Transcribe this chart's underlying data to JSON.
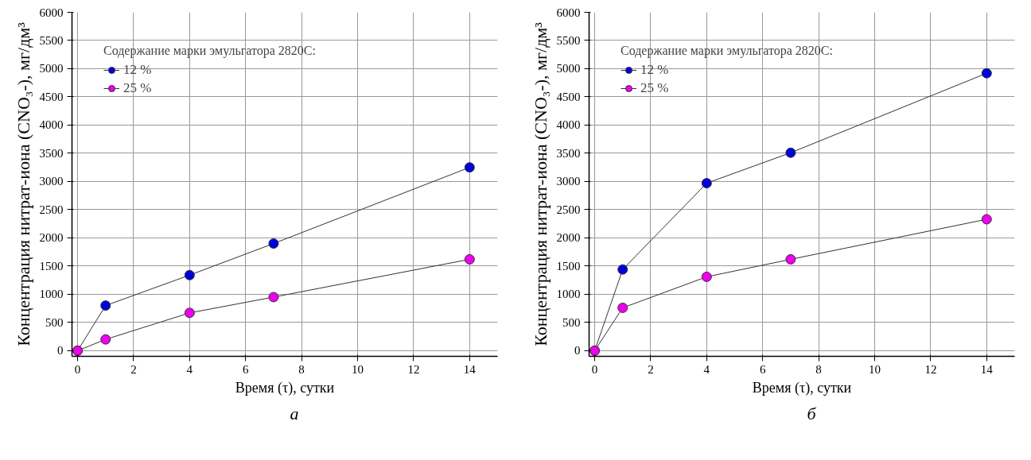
{
  "chart_data": [
    {
      "type": "line",
      "xlabel": "Время (τ), сутки",
      "ylabel": "Концентрация нитрат-иона (CNO₃-), мг/дм³",
      "legend_title": "Содержание марки эмульгатора 2820С:",
      "legend": "top left",
      "grid": true,
      "marker": "circle",
      "line_style": "solid",
      "x": [
        0,
        1,
        4,
        7,
        14
      ],
      "xlim": [
        -0.2,
        15
      ],
      "xticks": [
        0,
        2,
        4,
        6,
        8,
        10,
        12,
        14
      ],
      "ylim": [
        -100,
        6000
      ],
      "yticks": [
        0,
        500,
        1000,
        1500,
        2000,
        2500,
        3000,
        3500,
        4000,
        4500,
        5000,
        5500,
        6000
      ],
      "series": [
        {
          "name": "12 %",
          "color": "#0000dd",
          "values": [
            0,
            800,
            1340,
            1900,
            3250
          ]
        },
        {
          "name": "25 %",
          "color": "#ee00ee",
          "values": [
            0,
            200,
            670,
            950,
            1620
          ]
        }
      ],
      "annotations": [
        "а"
      ]
    },
    {
      "type": "line",
      "xlabel": "Время (τ), сутки",
      "ylabel": "Концентрация нитрат-иона (CNO₃-), мг/дм³",
      "legend_title": "Содержание марки эмульгатора 2820С:",
      "legend": "top left",
      "grid": true,
      "marker": "circle",
      "line_style": "solid",
      "x": [
        0,
        1,
        4,
        7,
        14
      ],
      "xlim": [
        -0.2,
        15
      ],
      "xticks": [
        0,
        2,
        4,
        6,
        8,
        10,
        12,
        14
      ],
      "ylim": [
        -100,
        6000
      ],
      "yticks": [
        0,
        500,
        1000,
        1500,
        2000,
        2500,
        3000,
        3500,
        4000,
        4500,
        5000,
        5500,
        6000
      ],
      "series": [
        {
          "name": "12 %",
          "color": "#0000dd",
          "values": [
            0,
            1440,
            2970,
            3510,
            4920
          ]
        },
        {
          "name": "25 %",
          "color": "#ee00ee",
          "values": [
            0,
            760,
            1310,
            1620,
            2330
          ]
        }
      ],
      "annotations": [
        "б"
      ]
    }
  ]
}
